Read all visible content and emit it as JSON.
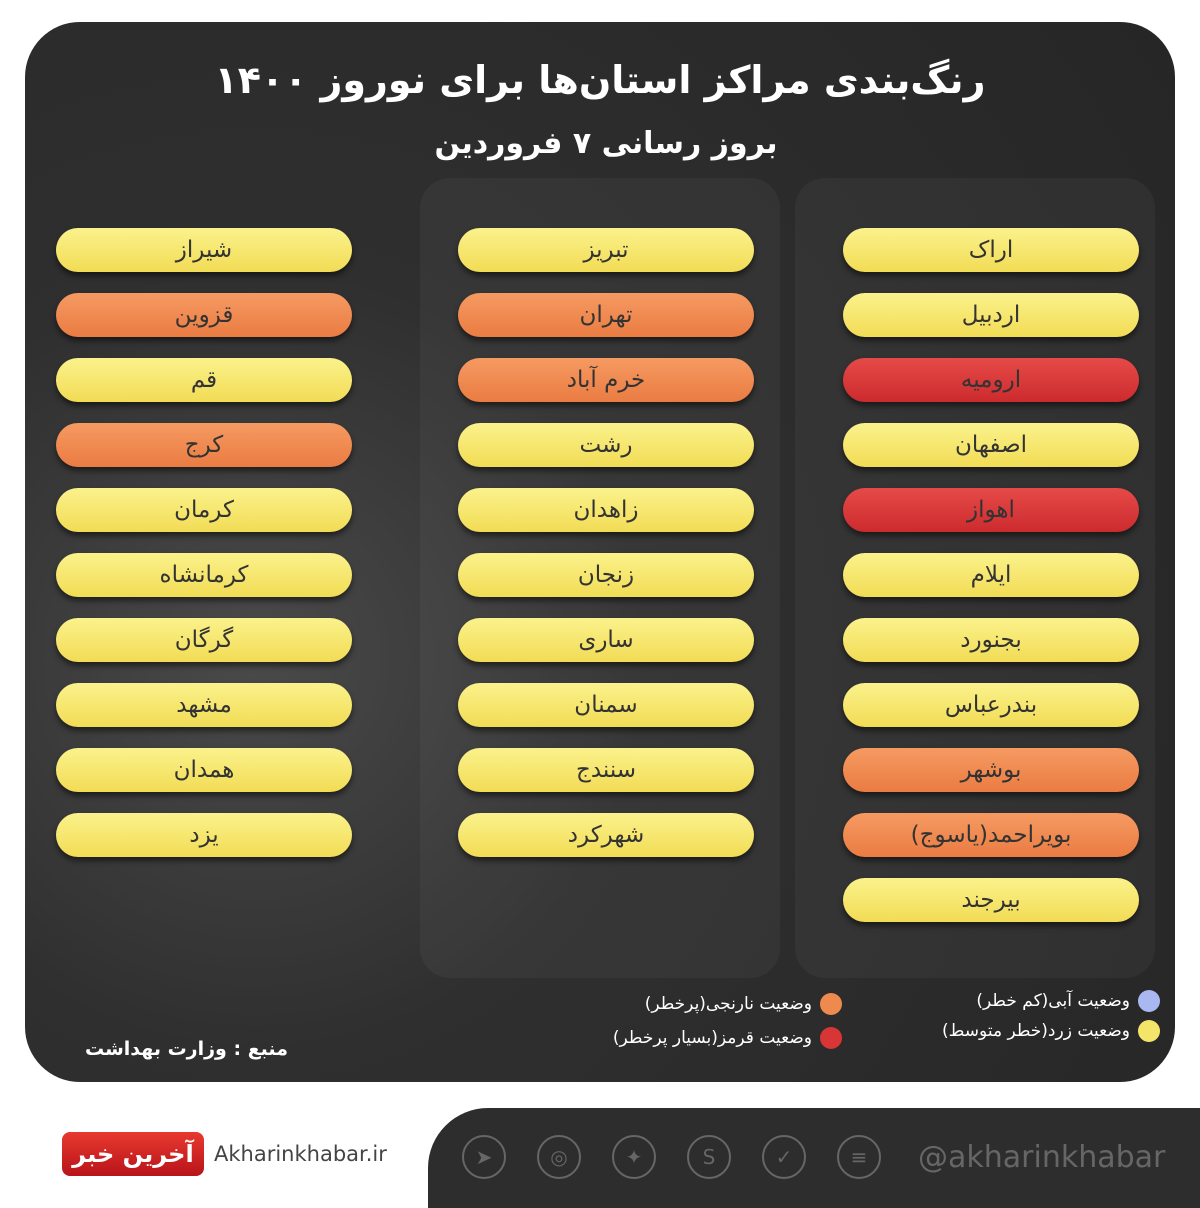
{
  "title": "رنگ‌بندی مراکز استان‌ها برای نوروز ۱۴۰۰",
  "subtitle": "بروز رسانی ۷ فروردین",
  "colors": {
    "yellow": "#f5e46a",
    "orange": "#ef8a4f",
    "red": "#d73536",
    "blue": "#a9b8f0"
  },
  "columns": [
    [
      {
        "name": "اراک",
        "status": "yellow"
      },
      {
        "name": "اردبیل",
        "status": "yellow"
      },
      {
        "name": "ارومیه",
        "status": "red"
      },
      {
        "name": "اصفهان",
        "status": "yellow"
      },
      {
        "name": "اهواز",
        "status": "red"
      },
      {
        "name": "ایلام",
        "status": "yellow"
      },
      {
        "name": "بجنورد",
        "status": "yellow"
      },
      {
        "name": "بندرعباس",
        "status": "yellow"
      },
      {
        "name": "بوشهر",
        "status": "orange"
      },
      {
        "name": "بویراحمد(یاسوج)",
        "status": "orange"
      },
      {
        "name": "بیرجند",
        "status": "yellow"
      }
    ],
    [
      {
        "name": "تبریز",
        "status": "yellow"
      },
      {
        "name": "تهران",
        "status": "orange"
      },
      {
        "name": "خرم آباد",
        "status": "orange"
      },
      {
        "name": "رشت",
        "status": "yellow"
      },
      {
        "name": "زاهدان",
        "status": "yellow"
      },
      {
        "name": "زنجان",
        "status": "yellow"
      },
      {
        "name": "ساری",
        "status": "yellow"
      },
      {
        "name": "سمنان",
        "status": "yellow"
      },
      {
        "name": "سنندج",
        "status": "yellow"
      },
      {
        "name": "شهرکرد",
        "status": "yellow"
      }
    ],
    [
      {
        "name": "شیراز",
        "status": "yellow"
      },
      {
        "name": "قزوین",
        "status": "orange"
      },
      {
        "name": "قم",
        "status": "yellow"
      },
      {
        "name": "کرج",
        "status": "orange"
      },
      {
        "name": "کرمان",
        "status": "yellow"
      },
      {
        "name": "کرمانشاه",
        "status": "yellow"
      },
      {
        "name": "گرگان",
        "status": "yellow"
      },
      {
        "name": "مشهد",
        "status": "yellow"
      },
      {
        "name": "همدان",
        "status": "yellow"
      },
      {
        "name": "یزد",
        "status": "yellow"
      }
    ]
  ],
  "legend": {
    "blue": "وضعیت آبی(کم خطر)",
    "yellow": "وضعیت زرد(خطر متوسط)",
    "orange": "وضعیت نارنجی(پرخطر)",
    "red": "وضعیت قرمز(بسیار پرخطر)"
  },
  "source": "منبع :  وزارت بهداشت",
  "footer": {
    "logo_text": "آخرین خبر",
    "site": "Akharinkhabar.ir",
    "handle": "@akharinkhabar",
    "social_icons": [
      "telegram-icon",
      "instagram-icon",
      "twitter-icon",
      "soroush-icon",
      "bale-icon",
      "eitaa-icon"
    ]
  }
}
